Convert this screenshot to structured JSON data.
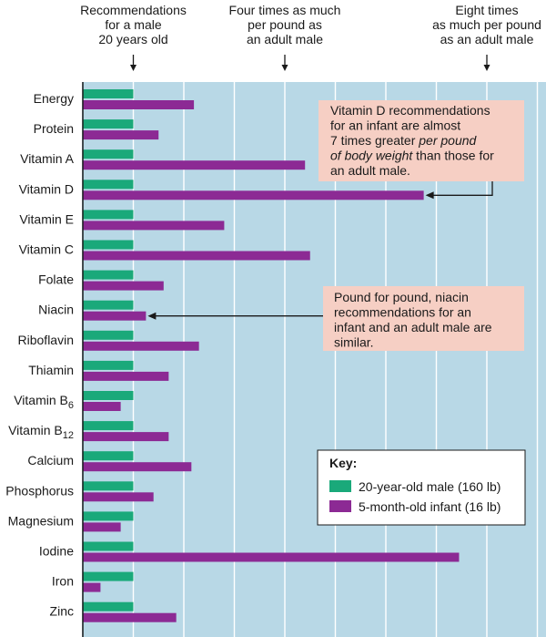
{
  "colors": {
    "plot_background": "#b8d8e6",
    "male": "#1aa97a",
    "infant": "#8c2a94",
    "callout": "#f6cfc4",
    "gridline": "#ffffff",
    "axis": "#1a1a1a"
  },
  "top_annotations": [
    {
      "lines": [
        "Recommendations",
        "for a male",
        "20 years old"
      ],
      "at": 1
    },
    {
      "lines": [
        "Four times as much",
        "per pound as",
        "an adult male"
      ],
      "at": 4
    },
    {
      "lines": [
        "Eight times",
        "as much per pound",
        "as an adult male"
      ],
      "at": 8
    }
  ],
  "callouts": [
    {
      "lines": [
        [
          {
            "t": "Vitamin D recommendations"
          }
        ],
        [
          {
            "t": "for an infant are almost"
          }
        ],
        [
          {
            "t": "7 times greater "
          },
          {
            "t": "per pound",
            "i": true
          }
        ],
        [
          {
            "t": "of body weight",
            "i": true
          },
          {
            "t": " than those for"
          }
        ],
        [
          {
            "t": "an adult male."
          }
        ]
      ],
      "target": "Vitamin D"
    },
    {
      "lines": [
        [
          {
            "t": "Pound for pound, niacin"
          }
        ],
        [
          {
            "t": "recommendations for an"
          }
        ],
        [
          {
            "t": "infant and an adult male are"
          }
        ],
        [
          {
            "t": "similar."
          }
        ]
      ],
      "target": "Niacin"
    }
  ],
  "legend": {
    "title": "Key:",
    "items": [
      {
        "label": "20-year-old male (160 lb)",
        "color": "#1aa97a"
      },
      {
        "label": "5-month-old infant (16 lb)",
        "color": "#8c2a94"
      }
    ]
  },
  "chart_data": {
    "type": "bar",
    "orientation": "horizontal",
    "categories": [
      {
        "name": "Energy"
      },
      {
        "name": "Protein"
      },
      {
        "name": "Vitamin A"
      },
      {
        "name": "Vitamin D"
      },
      {
        "name": "Vitamin E"
      },
      {
        "name": "Vitamin C"
      },
      {
        "name": "Folate"
      },
      {
        "name": "Niacin"
      },
      {
        "name": "Riboflavin"
      },
      {
        "name": "Thiamin"
      },
      {
        "name": "Vitamin B",
        "sub": "6"
      },
      {
        "name": "Vitamin B",
        "sub": "12"
      },
      {
        "name": "Calcium"
      },
      {
        "name": "Phosphorus"
      },
      {
        "name": "Magnesium"
      },
      {
        "name": "Iodine"
      },
      {
        "name": "Iron"
      },
      {
        "name": "Zinc"
      }
    ],
    "series": [
      {
        "name": "20-year-old male (160 lb)",
        "values": [
          1,
          1,
          1,
          1,
          1,
          1,
          1,
          1,
          1,
          1,
          1,
          1,
          1,
          1,
          1,
          1,
          1,
          1
        ]
      },
      {
        "name": "5-month-old infant (16 lb)",
        "values": [
          2.2,
          1.5,
          4.4,
          6.75,
          2.8,
          4.5,
          1.6,
          1.25,
          2.3,
          1.7,
          0.75,
          1.7,
          2.15,
          1.4,
          0.75,
          7.45,
          0.35,
          1.85
        ]
      }
    ],
    "xlim": [
      0,
      9.6
    ],
    "grid": true,
    "legend_position": "bottom-right"
  }
}
